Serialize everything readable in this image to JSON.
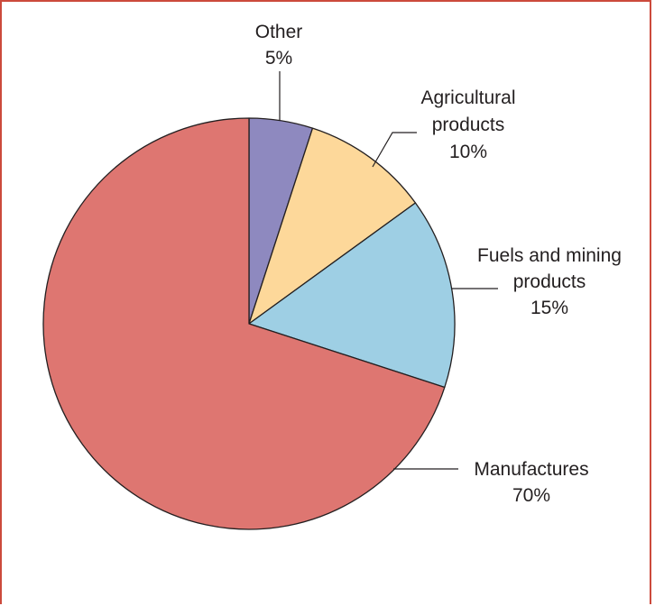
{
  "chart_data": {
    "type": "pie",
    "title": "",
    "start_angle_deg": 0,
    "direction": "clockwise",
    "slices": [
      {
        "name": "Other",
        "label_lines": [
          "Other",
          "5%"
        ],
        "value": 5,
        "color": "#8e89bf"
      },
      {
        "name": "Agricultural products",
        "label_lines": [
          "Agricultural",
          "products",
          "10%"
        ],
        "value": 10,
        "color": "#fdd89a"
      },
      {
        "name": "Fuels and mining products",
        "label_lines": [
          "Fuels and mining",
          "products",
          "15%"
        ],
        "value": 15,
        "color": "#9ecfe4"
      },
      {
        "name": "Manufactures",
        "label_lines": [
          "Manufactures",
          "70%"
        ],
        "value": 70,
        "color": "#de7671"
      }
    ],
    "border_color": "#cc4a3c",
    "stroke_color": "#231f20"
  }
}
